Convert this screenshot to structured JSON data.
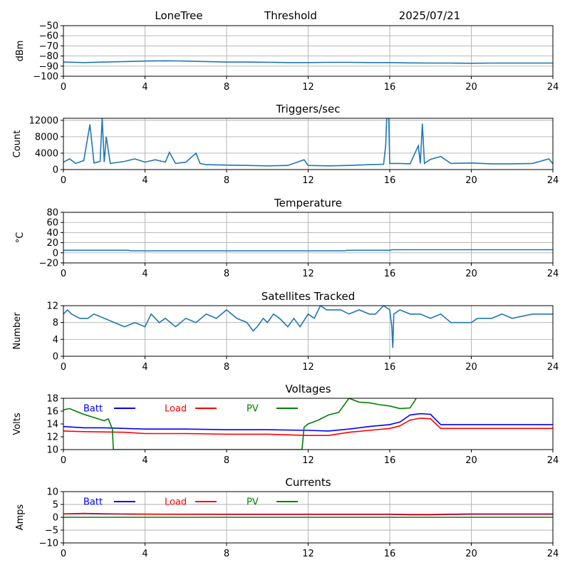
{
  "header": {
    "site": "LoneTree",
    "mode": "Threshold",
    "date": "2025/07/21"
  },
  "colors": {
    "series": "#1f77b4",
    "batt": "#0000ff",
    "load": "#ff0000",
    "pv": "#008000"
  },
  "chart_data": [
    {
      "type": "line",
      "title": "",
      "ylabel": "dBm",
      "xlim": [
        0,
        24
      ],
      "ylim": [
        -100,
        -50
      ],
      "xticks": [
        0,
        4,
        8,
        12,
        16,
        20,
        24
      ],
      "yticks": [
        -100,
        -90,
        -80,
        -70,
        -60,
        -50
      ],
      "grid": true,
      "series": [
        {
          "values": [
            [
              0,
              -86
            ],
            [
              1,
              -86.5
            ],
            [
              2,
              -86
            ],
            [
              3,
              -85.5
            ],
            [
              4,
              -85
            ],
            [
              5,
              -84.7
            ],
            [
              6,
              -85
            ],
            [
              7,
              -85.5
            ],
            [
              8,
              -86
            ],
            [
              9,
              -86
            ],
            [
              10,
              -86.2
            ],
            [
              11,
              -86.5
            ],
            [
              12,
              -86.5
            ],
            [
              13,
              -86.3
            ],
            [
              14,
              -86.3
            ],
            [
              15,
              -86.5
            ],
            [
              16,
              -86.5
            ],
            [
              17,
              -86.8
            ],
            [
              18,
              -87
            ],
            [
              19,
              -87
            ],
            [
              20,
              -87.2
            ],
            [
              21,
              -87
            ],
            [
              22,
              -87
            ],
            [
              23,
              -87
            ],
            [
              24,
              -87
            ]
          ]
        }
      ]
    },
    {
      "type": "line",
      "title": "Triggers/sec",
      "ylabel": "Count",
      "xlim": [
        0,
        24
      ],
      "ylim": [
        0,
        12500
      ],
      "xticks": [
        0,
        4,
        8,
        12,
        16,
        20,
        24
      ],
      "yticks": [
        0,
        4000,
        8000,
        12000
      ],
      "grid": true,
      "series": [
        {
          "values": [
            [
              0,
              1800
            ],
            [
              0.3,
              2600
            ],
            [
              0.6,
              1500
            ],
            [
              1,
              2200
            ],
            [
              1.3,
              11000
            ],
            [
              1.5,
              1600
            ],
            [
              1.8,
              2000
            ],
            [
              1.9,
              12500
            ],
            [
              2.0,
              1800
            ],
            [
              2.1,
              8000
            ],
            [
              2.3,
              1500
            ],
            [
              3,
              2000
            ],
            [
              3.5,
              2600
            ],
            [
              4,
              1800
            ],
            [
              4.5,
              2400
            ],
            [
              5,
              1800
            ],
            [
              5.2,
              4200
            ],
            [
              5.5,
              1500
            ],
            [
              6,
              1800
            ],
            [
              6.5,
              4000
            ],
            [
              6.7,
              1500
            ],
            [
              7,
              1200
            ],
            [
              8,
              1100
            ],
            [
              9,
              1000
            ],
            [
              10,
              900
            ],
            [
              11,
              1000
            ],
            [
              11.8,
              2400
            ],
            [
              12,
              1000
            ],
            [
              13,
              900
            ],
            [
              14,
              1000
            ],
            [
              15,
              1200
            ],
            [
              15.7,
              1300
            ],
            [
              15.8,
              5800
            ],
            [
              15.85,
              12500
            ],
            [
              15.95,
              12500
            ],
            [
              16.0,
              1500
            ],
            [
              16.5,
              1500
            ],
            [
              17,
              1400
            ],
            [
              17.4,
              5800
            ],
            [
              17.5,
              1500
            ],
            [
              17.6,
              11200
            ],
            [
              17.7,
              1500
            ],
            [
              18,
              2500
            ],
            [
              18.5,
              3200
            ],
            [
              19,
              1500
            ],
            [
              20,
              1600
            ],
            [
              21,
              1400
            ],
            [
              22,
              1400
            ],
            [
              23,
              1500
            ],
            [
              23.8,
              2600
            ],
            [
              24,
              1400
            ]
          ]
        }
      ]
    },
    {
      "type": "line",
      "title": "Temperature",
      "ylabel": "°C",
      "xlim": [
        0,
        24
      ],
      "ylim": [
        -20,
        80
      ],
      "xticks": [
        0,
        4,
        8,
        12,
        16,
        20,
        24
      ],
      "yticks": [
        -20,
        0,
        20,
        40,
        60,
        80
      ],
      "grid": true,
      "series": [
        {
          "values": [
            [
              0,
              5
            ],
            [
              3.2,
              5
            ],
            [
              3.3,
              4
            ],
            [
              13.8,
              4
            ],
            [
              13.9,
              5
            ],
            [
              16,
              5
            ],
            [
              16.1,
              6
            ],
            [
              24,
              6
            ]
          ]
        }
      ]
    },
    {
      "type": "line",
      "title": "Satellites Tracked",
      "ylabel": "Number",
      "xlim": [
        0,
        24
      ],
      "ylim": [
        0,
        12
      ],
      "xticks": [
        0,
        4,
        8,
        12,
        16,
        20,
        24
      ],
      "yticks": [
        0,
        4,
        8,
        12
      ],
      "grid": true,
      "series": [
        {
          "values": [
            [
              0,
              10
            ],
            [
              0.2,
              11
            ],
            [
              0.4,
              10
            ],
            [
              0.8,
              9
            ],
            [
              1.2,
              9
            ],
            [
              1.5,
              10
            ],
            [
              2,
              9
            ],
            [
              2.5,
              8
            ],
            [
              3,
              7
            ],
            [
              3.5,
              8
            ],
            [
              4,
              7
            ],
            [
              4.3,
              10
            ],
            [
              4.7,
              8
            ],
            [
              5,
              9
            ],
            [
              5.5,
              7
            ],
            [
              6,
              9
            ],
            [
              6.5,
              8
            ],
            [
              7,
              10
            ],
            [
              7.5,
              9
            ],
            [
              8,
              11
            ],
            [
              8.5,
              9
            ],
            [
              9,
              8
            ],
            [
              9.3,
              6
            ],
            [
              9.5,
              7
            ],
            [
              9.8,
              9
            ],
            [
              10,
              8
            ],
            [
              10.3,
              10
            ],
            [
              10.6,
              9
            ],
            [
              11,
              7
            ],
            [
              11.3,
              9
            ],
            [
              11.6,
              7
            ],
            [
              12,
              10
            ],
            [
              12.3,
              9
            ],
            [
              12.6,
              12
            ],
            [
              12.9,
              11
            ],
            [
              13.2,
              11
            ],
            [
              13.6,
              11
            ],
            [
              14,
              10
            ],
            [
              14.5,
              11
            ],
            [
              15,
              10
            ],
            [
              15.3,
              10
            ],
            [
              15.7,
              12
            ],
            [
              16,
              11
            ],
            [
              16.1,
              7
            ],
            [
              16.15,
              2
            ],
            [
              16.2,
              10
            ],
            [
              16.5,
              11
            ],
            [
              17,
              10
            ],
            [
              17.5,
              10
            ],
            [
              18,
              9
            ],
            [
              18.5,
              10
            ],
            [
              19,
              8
            ],
            [
              19.5,
              8
            ],
            [
              20,
              8
            ],
            [
              20.3,
              9
            ],
            [
              21,
              9
            ],
            [
              21.5,
              10
            ],
            [
              22,
              9
            ],
            [
              23,
              10
            ],
            [
              24,
              10
            ]
          ]
        }
      ]
    },
    {
      "type": "line",
      "title": "Voltages",
      "ylabel": "Volts",
      "xlim": [
        0,
        24
      ],
      "ylim": [
        10,
        18
      ],
      "xticks": [
        0,
        4,
        8,
        12,
        16,
        20,
        24
      ],
      "yticks": [
        10,
        12,
        14,
        16,
        18
      ],
      "grid": false,
      "series": [
        {
          "name": "Batt",
          "color": "#0000ff",
          "values": [
            [
              0,
              13.6
            ],
            [
              1,
              13.4
            ],
            [
              2,
              13.4
            ],
            [
              3,
              13.3
            ],
            [
              4,
              13.2
            ],
            [
              6,
              13.2
            ],
            [
              8,
              13.1
            ],
            [
              10,
              13.1
            ],
            [
              12,
              13
            ],
            [
              13,
              12.9
            ],
            [
              14,
              13.2
            ],
            [
              15,
              13.6
            ],
            [
              16,
              13.9
            ],
            [
              16.5,
              14.3
            ],
            [
              17,
              15.4
            ],
            [
              17.5,
              15.6
            ],
            [
              18,
              15.5
            ],
            [
              18.5,
              13.9
            ],
            [
              20,
              13.9
            ],
            [
              22,
              13.9
            ],
            [
              24,
              13.9
            ]
          ]
        },
        {
          "name": "Load",
          "color": "#ff0000",
          "values": [
            [
              0,
              12.9
            ],
            [
              1,
              12.8
            ],
            [
              3,
              12.7
            ],
            [
              4,
              12.5
            ],
            [
              6,
              12.5
            ],
            [
              8,
              12.4
            ],
            [
              10,
              12.4
            ],
            [
              12,
              12.2
            ],
            [
              13,
              12.2
            ],
            [
              14,
              12.7
            ],
            [
              15,
              13
            ],
            [
              16,
              13.3
            ],
            [
              16.5,
              13.7
            ],
            [
              17,
              14.6
            ],
            [
              17.5,
              14.9
            ],
            [
              18,
              14.8
            ],
            [
              18.5,
              13.3
            ],
            [
              20,
              13.3
            ],
            [
              22,
              13.3
            ],
            [
              24,
              13.3
            ]
          ]
        },
        {
          "name": "PV",
          "color": "#008000",
          "values": [
            [
              0,
              16.2
            ],
            [
              0.3,
              16.4
            ],
            [
              0.6,
              16
            ],
            [
              1,
              15.5
            ],
            [
              1.5,
              15
            ],
            [
              2,
              14.5
            ],
            [
              2.2,
              14.8
            ],
            [
              2.4,
              13.2
            ],
            [
              2.45,
              10
            ],
            [
              11.7,
              10
            ],
            [
              11.8,
              13.5
            ],
            [
              12,
              14
            ],
            [
              12.5,
              14.6
            ],
            [
              13,
              15.4
            ],
            [
              13.5,
              15.8
            ],
            [
              14,
              18
            ],
            [
              14.5,
              17.4
            ],
            [
              15,
              17.3
            ],
            [
              15.5,
              17
            ],
            [
              16,
              16.8
            ],
            [
              16.5,
              16.4
            ],
            [
              17,
              16.5
            ],
            [
              17.3,
              18
            ]
          ]
        }
      ],
      "legend": "top-left"
    },
    {
      "type": "line",
      "title": "Currents",
      "ylabel": "Amps",
      "xlim": [
        0,
        24
      ],
      "ylim": [
        -10,
        10
      ],
      "xticks": [
        0,
        4,
        8,
        12,
        16,
        20,
        24
      ],
      "yticks": [
        -10,
        -5,
        0,
        5,
        10
      ],
      "grid": true,
      "series": [
        {
          "name": "Batt",
          "color": "#0000ff",
          "values": [
            [
              0,
              1.3
            ],
            [
              1,
              1.4
            ],
            [
              2,
              1.3
            ],
            [
              4,
              1.2
            ],
            [
              8,
              1.1
            ],
            [
              12,
              1.1
            ],
            [
              16,
              1.1
            ],
            [
              17,
              1.0
            ],
            [
              18,
              1.0
            ],
            [
              20,
              1.2
            ],
            [
              24,
              1.2
            ]
          ]
        },
        {
          "name": "Load",
          "color": "#ff0000",
          "values": [
            [
              0,
              1.3
            ],
            [
              1,
              1.5
            ],
            [
              2,
              1.4
            ],
            [
              4,
              1.2
            ],
            [
              8,
              1.2
            ],
            [
              12,
              1.2
            ],
            [
              16,
              1.2
            ],
            [
              17,
              1.1
            ],
            [
              18,
              1.1
            ],
            [
              20,
              1.3
            ],
            [
              24,
              1.3
            ]
          ]
        },
        {
          "name": "PV",
          "color": "#008000",
          "values": [
            [
              0,
              0
            ],
            [
              24,
              0
            ]
          ]
        }
      ],
      "legend": "top-left"
    }
  ]
}
